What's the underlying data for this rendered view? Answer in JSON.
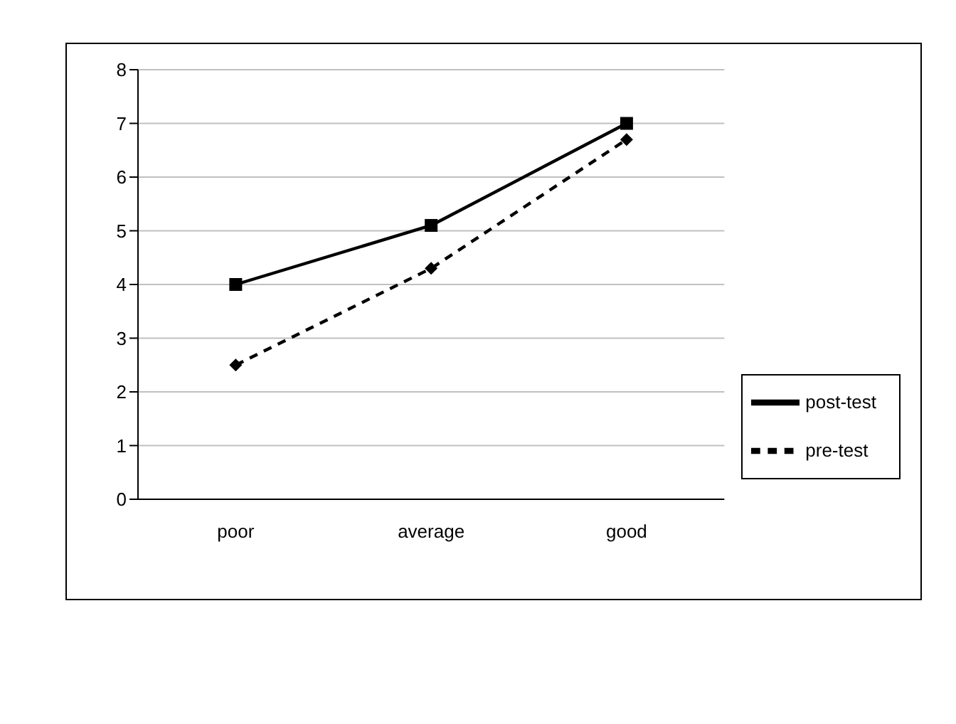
{
  "chart_data": {
    "type": "line",
    "categories": [
      "poor",
      "average",
      "good"
    ],
    "series": [
      {
        "name": "pre-test",
        "color": "#000000",
        "values": [
          2.5,
          4.3,
          6.7
        ],
        "marker": "diamond",
        "line_style": "dashed"
      },
      {
        "name": "post-test",
        "color": "#000000",
        "values": [
          4.0,
          5.1,
          7.0
        ],
        "marker": "square",
        "line_style": "solid"
      }
    ],
    "ylim": [
      0,
      8
    ],
    "yticks": [
      0,
      1,
      2,
      3,
      4,
      5,
      6,
      7,
      8
    ],
    "grid": "y",
    "legend": "right"
  }
}
